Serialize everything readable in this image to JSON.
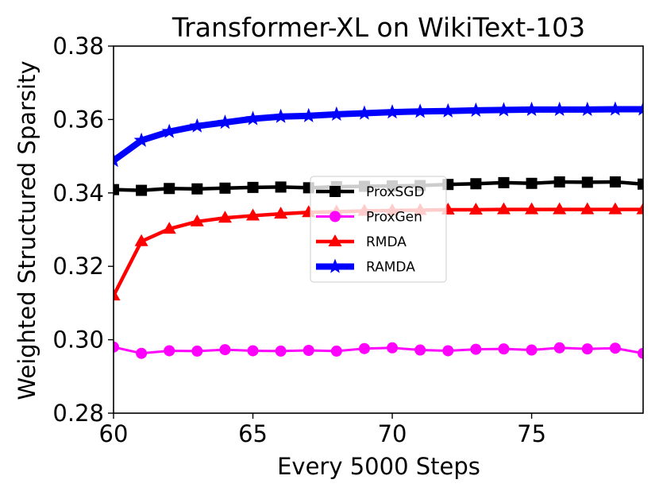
{
  "chart_data": {
    "type": "line",
    "title": "Transformer-XL on WikiText-103",
    "xlabel": "Every 5000 Steps",
    "ylabel": "Weighted Structured Sparsity",
    "xlim": [
      60,
      79
    ],
    "ylim": [
      0.28,
      0.38
    ],
    "xticks": [
      60,
      65,
      70,
      75
    ],
    "xtick_labels": [
      "60",
      "65",
      "70",
      "75"
    ],
    "yticks": [
      0.28,
      0.3,
      0.32,
      0.34,
      0.36,
      0.38
    ],
    "ytick_labels": [
      "0.28",
      "0.30",
      "0.32",
      "0.34",
      "0.36",
      "0.38"
    ],
    "legend_position": "center",
    "x": [
      60,
      61,
      62,
      63,
      64,
      65,
      66,
      67,
      68,
      69,
      70,
      71,
      72,
      73,
      74,
      75,
      76,
      77,
      78,
      79
    ],
    "series": [
      {
        "name": "ProxSGD",
        "color": "#000000",
        "marker": "square",
        "values": [
          0.3409,
          0.3407,
          0.3412,
          0.3411,
          0.3413,
          0.3415,
          0.3416,
          0.3414,
          0.3417,
          0.3418,
          0.3419,
          0.342,
          0.3423,
          0.3425,
          0.3428,
          0.3426,
          0.343,
          0.3429,
          0.343,
          0.3424
        ]
      },
      {
        "name": "ProxGen",
        "color": "#ff00ff",
        "marker": "circle",
        "values": [
          0.298,
          0.2963,
          0.297,
          0.2969,
          0.2973,
          0.297,
          0.2969,
          0.2971,
          0.2969,
          0.2976,
          0.2978,
          0.2972,
          0.297,
          0.2974,
          0.2975,
          0.2972,
          0.2978,
          0.2975,
          0.2977,
          0.2963
        ]
      },
      {
        "name": "RMDA",
        "color": "#ff0000",
        "marker": "triangle",
        "values": [
          0.312,
          0.3268,
          0.3302,
          0.3322,
          0.3332,
          0.3338,
          0.3343,
          0.3347,
          0.3349,
          0.3351,
          0.3352,
          0.3353,
          0.3354,
          0.3354,
          0.3355,
          0.3355,
          0.3355,
          0.3355,
          0.3355,
          0.3355
        ]
      },
      {
        "name": "RAMDA",
        "color": "#0000ff",
        "marker": "star",
        "values": [
          0.3488,
          0.3543,
          0.3567,
          0.3582,
          0.3592,
          0.3602,
          0.3608,
          0.361,
          0.3614,
          0.3617,
          0.362,
          0.3622,
          0.3623,
          0.3625,
          0.3626,
          0.3627,
          0.3627,
          0.3627,
          0.3628,
          0.3628
        ]
      }
    ]
  }
}
